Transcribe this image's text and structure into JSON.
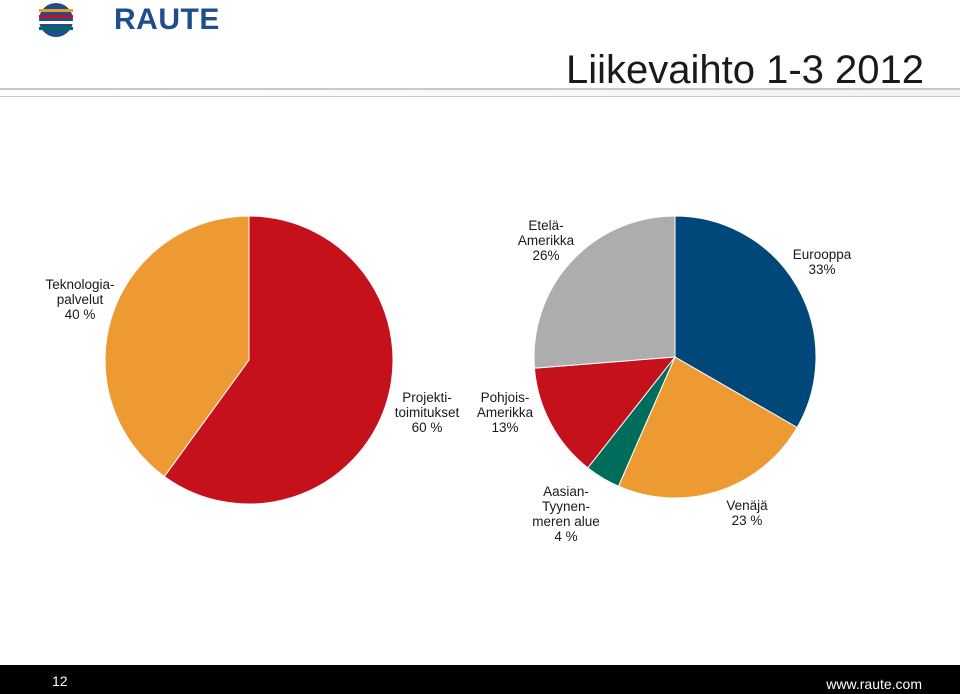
{
  "header": {
    "logo_text": "RAUTE",
    "title": "Liikevaihto 1-3 2012"
  },
  "footer": {
    "page_number": "12",
    "url": "www.raute.com"
  },
  "colors": {
    "orange": "#ee9a32",
    "red": "#c4111b",
    "gray": "#adadad",
    "navy": "#00477a",
    "teal": "#006c5b"
  },
  "chart_data": [
    {
      "type": "pie",
      "slices": [
        {
          "label": "Projekti-toimitukset",
          "value": 60,
          "text": [
            "Projekti-",
            "toimitukset",
            "60 %"
          ],
          "color": "#c4111b"
        },
        {
          "label": "Teknologia-palvelut",
          "value": 40,
          "text": [
            "Teknologia-",
            "palvelut",
            "40 %"
          ],
          "color": "#ee9a32"
        }
      ]
    },
    {
      "type": "pie",
      "slices": [
        {
          "label": "Eurooppa",
          "value": 33,
          "text": [
            "Eurooppa",
            "33%"
          ],
          "color": "#00477a"
        },
        {
          "label": "Venäjä",
          "value": 23,
          "text": [
            "Venäjä",
            "23 %"
          ],
          "color": "#ee9a32"
        },
        {
          "label": "Aasian-Tyynenmeren alue",
          "value": 4,
          "text": [
            "Aasian-",
            "Tyynen-",
            "meren alue",
            "4 %"
          ],
          "color": "#006c5b"
        },
        {
          "label": "Pohjois-Amerikka",
          "value": 13,
          "text": [
            "Pohjois-",
            "Amerikka",
            "13%"
          ],
          "color": "#c4111b"
        },
        {
          "label": "Etelä-Amerikka",
          "value": 26,
          "text": [
            "Etelä-",
            "Amerikka",
            "26%"
          ],
          "color": "#adadad"
        }
      ]
    }
  ]
}
